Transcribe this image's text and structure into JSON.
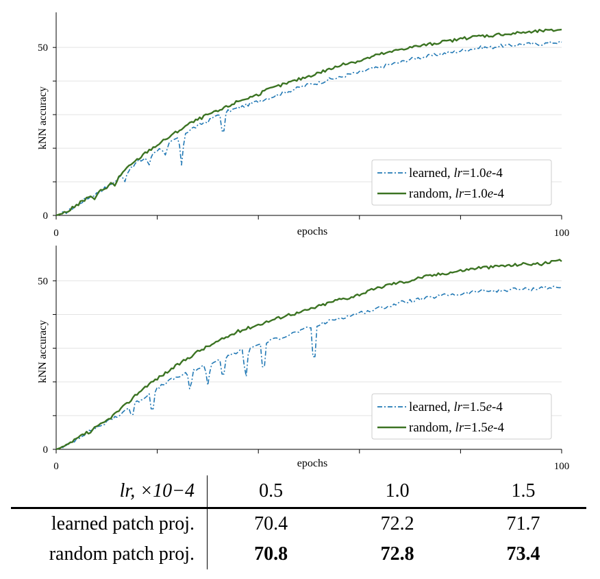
{
  "chart_data": [
    {
      "type": "line",
      "xlabel": "epochs",
      "ylabel": "kNN accuracy",
      "xlim": [
        0,
        100
      ],
      "ylim": [
        0,
        58
      ],
      "x_ticks": [
        0,
        20,
        40,
        60,
        80,
        100
      ],
      "x_tick_labels": [
        "0",
        "",
        "",
        "",
        "",
        "100"
      ],
      "y_ticks": [
        0,
        10,
        20,
        30,
        40,
        50
      ],
      "y_tick_labels": [
        "0",
        "",
        "",
        "",
        "",
        "50"
      ],
      "grid": "horizontal",
      "legend_position": "bottom-right",
      "series": [
        {
          "name": "learned",
          "lr_value": "1.0",
          "style": "dash-dot",
          "color": "#1f77b4",
          "points": [
            [
              0,
              0
            ],
            [
              2,
              1
            ],
            [
              4,
              3
            ],
            [
              6,
              5
            ],
            [
              8,
              6.5
            ],
            [
              10,
              8.5
            ],
            [
              12,
              10.5
            ],
            [
              13,
              12
            ],
            [
              14,
              13.5
            ],
            [
              15,
              14
            ],
            [
              16,
              16
            ],
            [
              17,
              16.5
            ],
            [
              18,
              17.5
            ],
            [
              19,
              18.5
            ],
            [
              20,
              19.5
            ],
            [
              21,
              20
            ],
            [
              22,
              21
            ],
            [
              23,
              22
            ],
            [
              24,
              23
            ],
            [
              25,
              24
            ],
            [
              26,
              25
            ],
            [
              27,
              26
            ],
            [
              28,
              26.5
            ],
            [
              29,
              27.5
            ],
            [
              30,
              28
            ],
            [
              31,
              29
            ],
            [
              32,
              30
            ],
            [
              34,
              31
            ],
            [
              36,
              32
            ],
            [
              38,
              33
            ],
            [
              40,
              34
            ],
            [
              42,
              35
            ],
            [
              44,
              36
            ],
            [
              46,
              37
            ],
            [
              48,
              38
            ],
            [
              50,
              39
            ],
            [
              52,
              39.5
            ],
            [
              54,
              40.5
            ],
            [
              56,
              41
            ],
            [
              58,
              42
            ],
            [
              60,
              42.5
            ],
            [
              62,
              43.5
            ],
            [
              64,
              44
            ],
            [
              66,
              45
            ],
            [
              68,
              45.5
            ],
            [
              70,
              46.5
            ],
            [
              72,
              47
            ],
            [
              74,
              47.5
            ],
            [
              76,
              48
            ],
            [
              78,
              48.5
            ],
            [
              80,
              49
            ],
            [
              82,
              49.5
            ],
            [
              84,
              50
            ],
            [
              86,
              50
            ],
            [
              88,
              50.5
            ],
            [
              90,
              50.5
            ],
            [
              92,
              51
            ],
            [
              94,
              51
            ],
            [
              96,
              51
            ],
            [
              98,
              51.5
            ],
            [
              100,
              51.5
            ]
          ],
          "dips": [
            [
              13.5,
              9.5
            ],
            [
              18.3,
              14.5
            ],
            [
              21.5,
              17.5
            ],
            [
              24.8,
              15
            ],
            [
              33,
              22.5
            ]
          ]
        },
        {
          "name": "random",
          "lr_value": "1.0",
          "style": "solid",
          "color": "#3b7322",
          "points": [
            [
              0,
              0
            ],
            [
              2,
              1
            ],
            [
              4,
              3
            ],
            [
              6,
              5
            ],
            [
              8,
              6.5
            ],
            [
              10,
              8.5
            ],
            [
              12,
              11
            ],
            [
              14,
              14
            ],
            [
              16,
              16.5
            ],
            [
              18,
              19
            ],
            [
              20,
              21
            ],
            [
              22,
              23
            ],
            [
              24,
              25
            ],
            [
              26,
              27
            ],
            [
              28,
              28.5
            ],
            [
              30,
              30
            ],
            [
              32,
              31
            ],
            [
              34,
              32.5
            ],
            [
              36,
              34
            ],
            [
              38,
              35
            ],
            [
              40,
              36
            ],
            [
              42,
              37.5
            ],
            [
              44,
              38.5
            ],
            [
              46,
              39.5
            ],
            [
              48,
              40.5
            ],
            [
              50,
              41.5
            ],
            [
              52,
              42.5
            ],
            [
              54,
              43.5
            ],
            [
              56,
              44.5
            ],
            [
              58,
              45.5
            ],
            [
              60,
              46
            ],
            [
              62,
              47
            ],
            [
              64,
              48
            ],
            [
              66,
              48.5
            ],
            [
              68,
              49.5
            ],
            [
              70,
              50
            ],
            [
              72,
              50.5
            ],
            [
              74,
              51
            ],
            [
              76,
              51.5
            ],
            [
              78,
              52
            ],
            [
              80,
              52.5
            ],
            [
              82,
              53
            ],
            [
              84,
              53.5
            ],
            [
              86,
              53.5
            ],
            [
              88,
              54
            ],
            [
              90,
              54
            ],
            [
              92,
              54.5
            ],
            [
              94,
              54.5
            ],
            [
              96,
              55
            ],
            [
              98,
              55
            ],
            [
              100,
              55.5
            ]
          ],
          "dips": [
            [
              7.5,
              4.5
            ],
            [
              11.5,
              8.5
            ]
          ]
        }
      ]
    },
    {
      "type": "line",
      "xlabel": "epochs",
      "ylabel": "kNN accuracy",
      "xlim": [
        0,
        100
      ],
      "ylim": [
        0,
        58
      ],
      "x_ticks": [
        0,
        20,
        40,
        60,
        80,
        100
      ],
      "x_tick_labels": [
        "0",
        "",
        "",
        "",
        "",
        "100"
      ],
      "y_ticks": [
        0,
        10,
        20,
        30,
        40,
        50
      ],
      "y_tick_labels": [
        "0",
        "",
        "",
        "",
        "",
        "50"
      ],
      "grid": "horizontal",
      "legend_position": "bottom-right",
      "series": [
        {
          "name": "learned",
          "lr_value": "1.5",
          "style": "dash-dot",
          "color": "#1f77b4",
          "points": [
            [
              0,
              0
            ],
            [
              2,
              1
            ],
            [
              4,
              3
            ],
            [
              6,
              5
            ],
            [
              8,
              6.5
            ],
            [
              10,
              8
            ],
            [
              12,
              10
            ],
            [
              14,
              12
            ],
            [
              16,
              14
            ],
            [
              18,
              16
            ],
            [
              20,
              18
            ],
            [
              22,
              20
            ],
            [
              24,
              21.5
            ],
            [
              26,
              22.5
            ],
            [
              28,
              24
            ],
            [
              30,
              25
            ],
            [
              32,
              26.5
            ],
            [
              34,
              27.5
            ],
            [
              36,
              29
            ],
            [
              38,
              30
            ],
            [
              40,
              31
            ],
            [
              42,
              32
            ],
            [
              44,
              33
            ],
            [
              46,
              34
            ],
            [
              48,
              35
            ],
            [
              50,
              36
            ],
            [
              52,
              37
            ],
            [
              54,
              38
            ],
            [
              56,
              39
            ],
            [
              58,
              39.5
            ],
            [
              60,
              40.5
            ],
            [
              62,
              41
            ],
            [
              64,
              42
            ],
            [
              66,
              42.5
            ],
            [
              68,
              43.5
            ],
            [
              70,
              44
            ],
            [
              72,
              44.5
            ],
            [
              74,
              45
            ],
            [
              76,
              45.5
            ],
            [
              78,
              46
            ],
            [
              80,
              46
            ],
            [
              82,
              46.5
            ],
            [
              84,
              47
            ],
            [
              86,
              47
            ],
            [
              88,
              47
            ],
            [
              90,
              47.5
            ],
            [
              92,
              47.5
            ],
            [
              94,
              47.5
            ],
            [
              96,
              48
            ],
            [
              98,
              48
            ],
            [
              100,
              48
            ]
          ],
          "dips": [
            [
              8.5,
              7
            ],
            [
              12,
              9.5
            ],
            [
              15,
              9
            ],
            [
              19,
              9.5
            ],
            [
              26.5,
              17
            ],
            [
              30,
              19
            ],
            [
              33,
              20
            ],
            [
              37.5,
              20
            ],
            [
              41,
              21
            ],
            [
              51,
              23
            ]
          ]
        },
        {
          "name": "random",
          "lr_value": "1.5",
          "style": "solid",
          "color": "#3b7322",
          "points": [
            [
              0,
              0
            ],
            [
              2,
              1
            ],
            [
              4,
              3
            ],
            [
              6,
              5
            ],
            [
              8,
              6.5
            ],
            [
              10,
              8.5
            ],
            [
              12,
              11
            ],
            [
              14,
              13.5
            ],
            [
              16,
              16.5
            ],
            [
              18,
              19
            ],
            [
              20,
              21
            ],
            [
              22,
              23
            ],
            [
              24,
              25
            ],
            [
              26,
              27
            ],
            [
              28,
              29
            ],
            [
              30,
              30.5
            ],
            [
              32,
              32
            ],
            [
              34,
              33.5
            ],
            [
              36,
              35
            ],
            [
              38,
              36
            ],
            [
              40,
              37
            ],
            [
              42,
              38
            ],
            [
              44,
              39
            ],
            [
              46,
              40
            ],
            [
              48,
              40.5
            ],
            [
              50,
              41.5
            ],
            [
              52,
              42.5
            ],
            [
              54,
              43.5
            ],
            [
              56,
              44.5
            ],
            [
              58,
              45
            ],
            [
              60,
              46
            ],
            [
              62,
              47
            ],
            [
              64,
              48
            ],
            [
              66,
              49
            ],
            [
              68,
              49.5
            ],
            [
              70,
              50
            ],
            [
              72,
              51
            ],
            [
              74,
              51.5
            ],
            [
              76,
              52
            ],
            [
              78,
              52.5
            ],
            [
              80,
              53
            ],
            [
              82,
              53.5
            ],
            [
              84,
              54
            ],
            [
              86,
              54
            ],
            [
              88,
              54.5
            ],
            [
              90,
              54.5
            ],
            [
              92,
              55
            ],
            [
              94,
              55
            ],
            [
              96,
              55
            ],
            [
              98,
              55.5
            ],
            [
              100,
              56
            ]
          ],
          "dips": [
            [
              6.5,
              4.5
            ]
          ]
        }
      ]
    }
  ],
  "table": {
    "header": {
      "row_label": "lr, ×10−4",
      "lr_values": [
        "0.5",
        "1.0",
        "1.5"
      ]
    },
    "rows": [
      {
        "label": "learned patch proj.",
        "values": [
          "70.4",
          "72.2",
          "71.7"
        ],
        "bold": [
          false,
          false,
          false
        ]
      },
      {
        "label": "random patch proj.",
        "values": [
          "70.8",
          "72.8",
          "73.4"
        ],
        "bold": [
          true,
          true,
          true
        ]
      }
    ]
  }
}
